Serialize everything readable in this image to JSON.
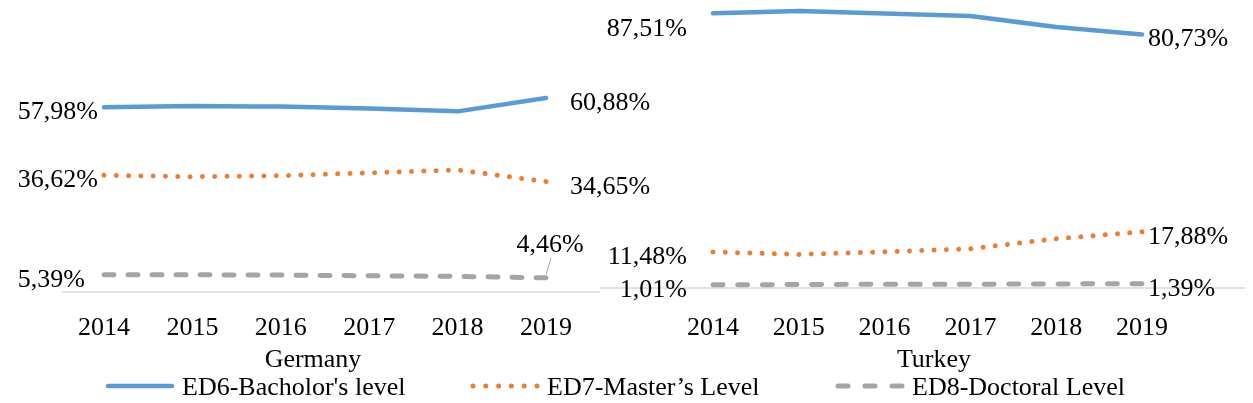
{
  "chart_data": [
    {
      "type": "line",
      "xlabel": "Germany",
      "categories": [
        "2014",
        "2015",
        "2016",
        "2017",
        "2018",
        "2019"
      ],
      "tick_labels": "x",
      "legend": "bottom",
      "series": [
        {
          "name": "ED6-Bacholor's level",
          "color": "#5b9bd5",
          "line_style": "solid",
          "values": [
            57.98,
            58.4,
            58.2,
            57.6,
            56.7,
            60.88
          ],
          "value_labels": [
            "57,98%",
            null,
            null,
            null,
            null,
            "60,88%"
          ]
        },
        {
          "name": "ED7-Master’s Level",
          "color": "#ed7d31",
          "line_style": "dotted",
          "values": [
            36.62,
            36.2,
            36.5,
            37.4,
            38.3,
            34.65
          ],
          "value_labels": [
            "36,62%",
            null,
            null,
            null,
            null,
            "34,65%"
          ]
        },
        {
          "name": "ED8-Doctoral Level",
          "color": "#a5a5a5",
          "line_style": "dashed",
          "values": [
            5.39,
            5.4,
            5.3,
            5.1,
            4.9,
            4.46
          ],
          "value_labels": [
            "5,39%",
            null,
            null,
            null,
            null,
            "4,46%"
          ]
        }
      ]
    },
    {
      "type": "line",
      "xlabel": "Turkey",
      "categories": [
        "2014",
        "2015",
        "2016",
        "2017",
        "2018",
        "2019"
      ],
      "tick_labels": "x",
      "series": [
        {
          "color": "#5b9bd5",
          "line_style": "solid",
          "values": [
            87.51,
            88.2,
            87.4,
            86.6,
            83.1,
            80.73
          ],
          "value_labels": [
            "87,51%",
            null,
            null,
            null,
            null,
            "80,73%"
          ]
        },
        {
          "color": "#ed7d31",
          "line_style": "dotted",
          "values": [
            11.48,
            10.7,
            11.5,
            12.5,
            15.7,
            17.88
          ],
          "value_labels": [
            "11,48%",
            null,
            null,
            null,
            null,
            "17,88%"
          ]
        },
        {
          "color": "#a5a5a5",
          "line_style": "dashed",
          "values": [
            1.01,
            1.1,
            1.2,
            1.2,
            1.3,
            1.39
          ],
          "value_labels": [
            "1,01%",
            null,
            null,
            null,
            null,
            "1,39%"
          ]
        }
      ]
    }
  ]
}
